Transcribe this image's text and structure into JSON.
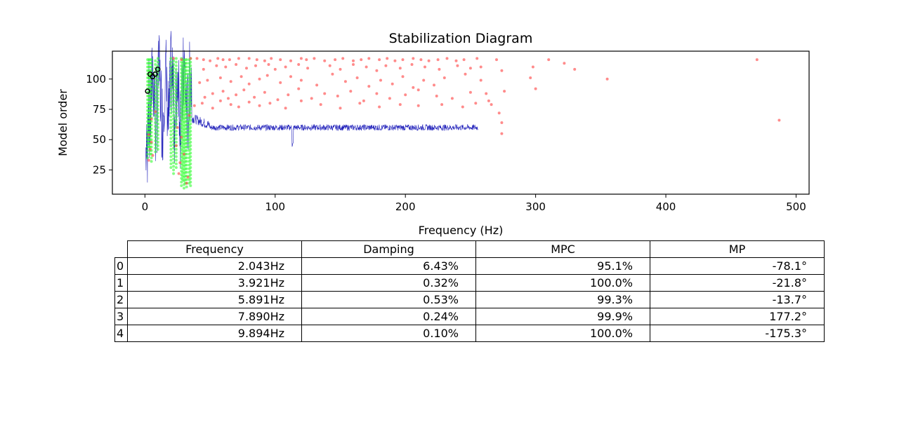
{
  "chart_data": {
    "type": "scatter",
    "title": "Stabilization Diagram",
    "xlabel": "Frequency (Hz)",
    "ylabel": "Model order",
    "xlim": [
      -25,
      510
    ],
    "ylim": [
      5,
      123
    ],
    "xticks": [
      0,
      100,
      200,
      300,
      400,
      500
    ],
    "yticks": [
      25,
      50,
      75,
      100
    ],
    "grid": false,
    "series": [
      {
        "kind": "unstable-poles",
        "color": "#ff4d4d",
        "points": [
          [
            22,
            117
          ],
          [
            28,
            116
          ],
          [
            35,
            117
          ],
          [
            40,
            117
          ],
          [
            45,
            116
          ],
          [
            50,
            115
          ],
          [
            56,
            117
          ],
          [
            60,
            116
          ],
          [
            65,
            116
          ],
          [
            72,
            117
          ],
          [
            80,
            117
          ],
          [
            86,
            116
          ],
          [
            92,
            115
          ],
          [
            97,
            117
          ],
          [
            104,
            116
          ],
          [
            112,
            115
          ],
          [
            120,
            117
          ],
          [
            124,
            116
          ],
          [
            130,
            117
          ],
          [
            138,
            115
          ],
          [
            146,
            116
          ],
          [
            152,
            117
          ],
          [
            160,
            115
          ],
          [
            166,
            116
          ],
          [
            172,
            117
          ],
          [
            180,
            116
          ],
          [
            186,
            117
          ],
          [
            192,
            115
          ],
          [
            198,
            116
          ],
          [
            206,
            117
          ],
          [
            212,
            116
          ],
          [
            218,
            115
          ],
          [
            225,
            116
          ],
          [
            232,
            117
          ],
          [
            239,
            115
          ],
          [
            245,
            116
          ],
          [
            255,
            117
          ],
          [
            270,
            116
          ],
          [
            310,
            116
          ],
          [
            470,
            116
          ],
          [
            45,
            108
          ],
          [
            55,
            111
          ],
          [
            62,
            110
          ],
          [
            70,
            112
          ],
          [
            78,
            109
          ],
          [
            85,
            111
          ],
          [
            95,
            112
          ],
          [
            100,
            108
          ],
          [
            108,
            110
          ],
          [
            118,
            112
          ],
          [
            125,
            109
          ],
          [
            142,
            111
          ],
          [
            150,
            108
          ],
          [
            160,
            112
          ],
          [
            170,
            110
          ],
          [
            178,
            107
          ],
          [
            185,
            111
          ],
          [
            196,
            109
          ],
          [
            205,
            112
          ],
          [
            215,
            110
          ],
          [
            226,
            108
          ],
          [
            240,
            111
          ],
          [
            250,
            109
          ],
          [
            258,
            110
          ],
          [
            274,
            107
          ],
          [
            298,
            110
          ],
          [
            322,
            113
          ],
          [
            330,
            108
          ],
          [
            355,
            100
          ],
          [
            296,
            101
          ],
          [
            42,
            97
          ],
          [
            48,
            99
          ],
          [
            58,
            101
          ],
          [
            66,
            98
          ],
          [
            74,
            102
          ],
          [
            80,
            96
          ],
          [
            88,
            100
          ],
          [
            94,
            103
          ],
          [
            104,
            97
          ],
          [
            112,
            102
          ],
          [
            120,
            99
          ],
          [
            132,
            95
          ],
          [
            144,
            104
          ],
          [
            154,
            98
          ],
          [
            163,
            101
          ],
          [
            172,
            94
          ],
          [
            181,
            99
          ],
          [
            190,
            96
          ],
          [
            198,
            102
          ],
          [
            206,
            93
          ],
          [
            214,
            99
          ],
          [
            222,
            95
          ],
          [
            230,
            101
          ],
          [
            246,
            104
          ],
          [
            258,
            99
          ],
          [
            262,
            88
          ],
          [
            276,
            90
          ],
          [
            300,
            92
          ],
          [
            46,
            85
          ],
          [
            52,
            88
          ],
          [
            60,
            90
          ],
          [
            64,
            84
          ],
          [
            70,
            87
          ],
          [
            76,
            91
          ],
          [
            84,
            85
          ],
          [
            92,
            89
          ],
          [
            102,
            83
          ],
          [
            110,
            87
          ],
          [
            118,
            92
          ],
          [
            128,
            84
          ],
          [
            138,
            88
          ],
          [
            148,
            86
          ],
          [
            158,
            90
          ],
          [
            168,
            82
          ],
          [
            178,
            88
          ],
          [
            188,
            84
          ],
          [
            200,
            87
          ],
          [
            210,
            91
          ],
          [
            224,
            86
          ],
          [
            236,
            84
          ],
          [
            250,
            89
          ],
          [
            264,
            82
          ],
          [
            38,
            78
          ],
          [
            44,
            80
          ],
          [
            52,
            76
          ],
          [
            58,
            82
          ],
          [
            66,
            79
          ],
          [
            72,
            77
          ],
          [
            80,
            81
          ],
          [
            88,
            78
          ],
          [
            96,
            80
          ],
          [
            108,
            76
          ],
          [
            120,
            82
          ],
          [
            135,
            79
          ],
          [
            150,
            76
          ],
          [
            165,
            80
          ],
          [
            180,
            77
          ],
          [
            196,
            79
          ],
          [
            210,
            78
          ],
          [
            228,
            79
          ],
          [
            244,
            77
          ],
          [
            254,
            80
          ],
          [
            266,
            79
          ],
          [
            272,
            72
          ],
          [
            274,
            64
          ],
          [
            274,
            55
          ],
          [
            487,
            66
          ],
          [
            3,
            54
          ],
          [
            5,
            48
          ],
          [
            4,
            42
          ],
          [
            6,
            37
          ],
          [
            3,
            33
          ],
          [
            25,
            60
          ],
          [
            28,
            52
          ],
          [
            24,
            45
          ],
          [
            30,
            38
          ],
          [
            27,
            31
          ],
          [
            26,
            22
          ],
          [
            33,
            19
          ],
          [
            32,
            14
          ],
          [
            34,
            70
          ],
          [
            5,
            67
          ],
          [
            8,
            73
          ]
        ]
      },
      {
        "kind": "stable-poles",
        "color": "#33ff33",
        "columns": [
          {
            "x": 2,
            "from": 35,
            "to": 117
          },
          {
            "x": 3,
            "from": 44,
            "to": 117
          },
          {
            "x": 4,
            "from": 38,
            "to": 117
          },
          {
            "x": 5,
            "from": 32,
            "to": 117
          },
          {
            "x": 8,
            "from": 40,
            "to": 117
          },
          {
            "x": 10,
            "from": 42,
            "to": 117
          },
          {
            "x": 20,
            "from": 27,
            "to": 117
          },
          {
            "x": 22,
            "from": 22,
            "to": 117
          },
          {
            "x": 24,
            "from": 27,
            "to": 117
          },
          {
            "x": 28,
            "from": 12,
            "to": 117
          },
          {
            "x": 29,
            "from": 17,
            "to": 117
          },
          {
            "x": 30,
            "from": 10,
            "to": 117
          },
          {
            "x": 31,
            "from": 14,
            "to": 117
          },
          {
            "x": 32,
            "from": 11,
            "to": 117
          },
          {
            "x": 34,
            "from": 14,
            "to": 117
          },
          {
            "x": 35,
            "from": 12,
            "to": 117
          }
        ]
      },
      {
        "kind": "selected-modes",
        "color": "#000000",
        "points": [
          [
            2.043,
            90
          ],
          [
            3.921,
            104
          ],
          [
            5.891,
            102
          ],
          [
            7.89,
            104
          ],
          [
            9.894,
            108
          ]
        ]
      },
      {
        "kind": "psd-trace",
        "color": "#2222bb",
        "note_free": "",
        "start": 0,
        "end": 256,
        "plateau": 60
      }
    ]
  },
  "table": {
    "headers": [
      "Frequency",
      "Damping",
      "MPC",
      "MP"
    ],
    "rows": [
      {
        "index": "0",
        "frequency": "2.043Hz",
        "damping": "6.43%",
        "mpc": "95.1%",
        "mp": "-78.1°"
      },
      {
        "index": "1",
        "frequency": "3.921Hz",
        "damping": "0.32%",
        "mpc": "100.0%",
        "mp": "-21.8°"
      },
      {
        "index": "2",
        "frequency": "5.891Hz",
        "damping": "0.53%",
        "mpc": "99.3%",
        "mp": "-13.7°"
      },
      {
        "index": "3",
        "frequency": "7.890Hz",
        "damping": "0.24%",
        "mpc": "99.9%",
        "mp": "177.2°"
      },
      {
        "index": "4",
        "frequency": "9.894Hz",
        "damping": "0.10%",
        "mpc": "100.0%",
        "mp": "-175.3°"
      }
    ]
  }
}
